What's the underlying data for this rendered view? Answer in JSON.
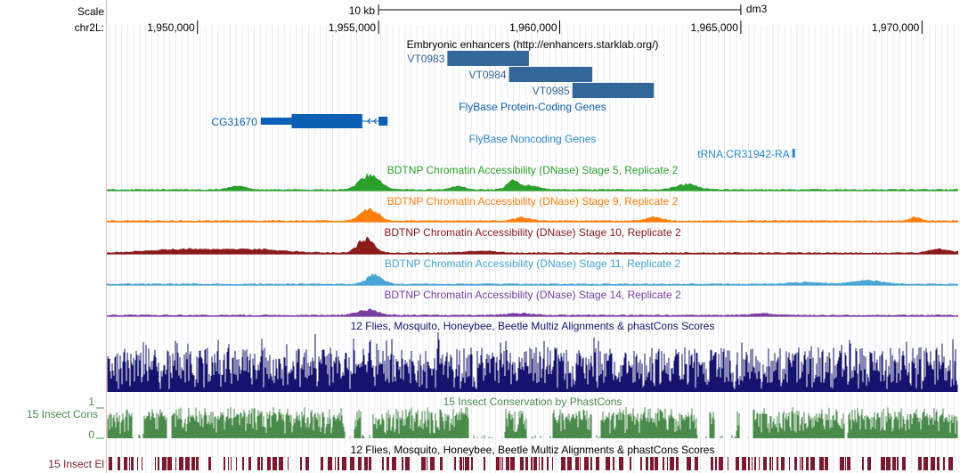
{
  "header": {
    "scale_label": "Scale",
    "chrom_label": "chr2L:",
    "scale_bar_label": "10 kb",
    "assembly": "dm3"
  },
  "ruler": {
    "start": 1947500,
    "end": 1971000,
    "ticks": [
      {
        "value": 1950000,
        "label": "1,950,000"
      },
      {
        "value": 1955000,
        "label": "1,955,000"
      },
      {
        "value": 1960000,
        "label": "1,960,000"
      },
      {
        "value": 1965000,
        "label": "1,965,000"
      },
      {
        "value": 1970000,
        "label": "1,970,000"
      }
    ],
    "scale_bar": {
      "start": 1955000,
      "end": 1965000
    }
  },
  "tracks": {
    "enhancers": {
      "title": "Embryonic enhancers (http://enhancers.starklab.org/)",
      "color": "#336699",
      "items": [
        {
          "name": "VT0983",
          "start": 1956900,
          "end": 1959150
        },
        {
          "name": "VT0984",
          "start": 1958600,
          "end": 1960900
        },
        {
          "name": "VT0985",
          "start": 1960350,
          "end": 1962600
        }
      ]
    },
    "protein_coding": {
      "title": "FlyBase Protein-Coding Genes",
      "color": "#0b5fb4",
      "gene": {
        "name": "CG31670",
        "start": 1951750,
        "end": 1955250,
        "thick": [
          1952600,
          1954550
        ],
        "exons": [
          [
            1951750,
            1952600
          ],
          [
            1952600,
            1954550
          ],
          [
            1955000,
            1955250
          ]
        ],
        "strand": "-"
      }
    },
    "noncoding": {
      "title": "FlyBase Noncoding Genes",
      "color": "#2b88d0",
      "item": {
        "name": "tRNA:CR31942-RA",
        "start": 1966420,
        "end": 1966490
      }
    },
    "dnase": [
      {
        "title": "BDTNP Chromatin Accessibility (DNase) Stage 5, Replicate 2",
        "color": "#2ca02c",
        "peaks": [
          [
            1954750,
            8,
            38
          ],
          [
            1958700,
            5,
            22
          ],
          [
            1959200,
            2,
            35
          ],
          [
            1963500,
            3,
            40
          ],
          [
            1951100,
            2,
            30
          ],
          [
            1957200,
            2,
            28
          ]
        ]
      },
      {
        "title": "BDTNP Chromatin Accessibility (DNase) Stage 9, Replicate 2",
        "color": "#ff7f0e",
        "peaks": [
          [
            1954750,
            7,
            33
          ],
          [
            1958950,
            2,
            30
          ],
          [
            1962600,
            2,
            30
          ],
          [
            1969800,
            2,
            20
          ]
        ]
      },
      {
        "title": "BDTNP Chromatin Accessibility (DNase) Stage 10, Replicate 2",
        "color": "#8b1a1a",
        "peaks": [
          [
            1954650,
            8,
            30
          ],
          [
            1949500,
            2,
            120
          ],
          [
            1951500,
            2,
            120
          ],
          [
            1970500,
            2,
            40
          ],
          [
            1957800,
            1,
            60
          ]
        ]
      },
      {
        "title": "BDTNP Chromatin Accessibility (DNase) Stage 11, Replicate 2",
        "color": "#48a5d6",
        "peaks": [
          [
            1954900,
            5,
            30
          ],
          [
            1968500,
            2,
            60
          ],
          [
            1966800,
            1,
            60
          ]
        ]
      },
      {
        "title": "BDTNP Chromatin Accessibility (DNase) Stage 14, Replicate 2",
        "color": "#7a3fa0",
        "peaks": [
          [
            1954700,
            3,
            40
          ],
          [
            1965600,
            1,
            40
          ],
          [
            1958900,
            1,
            50
          ]
        ]
      }
    ],
    "multiz": {
      "title": "12 Flies, Mosquito, Honeybee, Beetle Multiz Alignments & phastCons Scores",
      "color": "#14146e"
    },
    "phastcons": {
      "title": "15 Insect Conservation by PhastCons",
      "label": "15 Insect Cons",
      "axis_max": "1",
      "axis_min": "0",
      "color": "#4a8a4a"
    },
    "elements": {
      "title": "12 Flies, Mosquito, Honeybee, Beetle Multiz Alignments & phastCons Scores",
      "label": "15 Insect El",
      "color": "#7a1a2e"
    }
  }
}
